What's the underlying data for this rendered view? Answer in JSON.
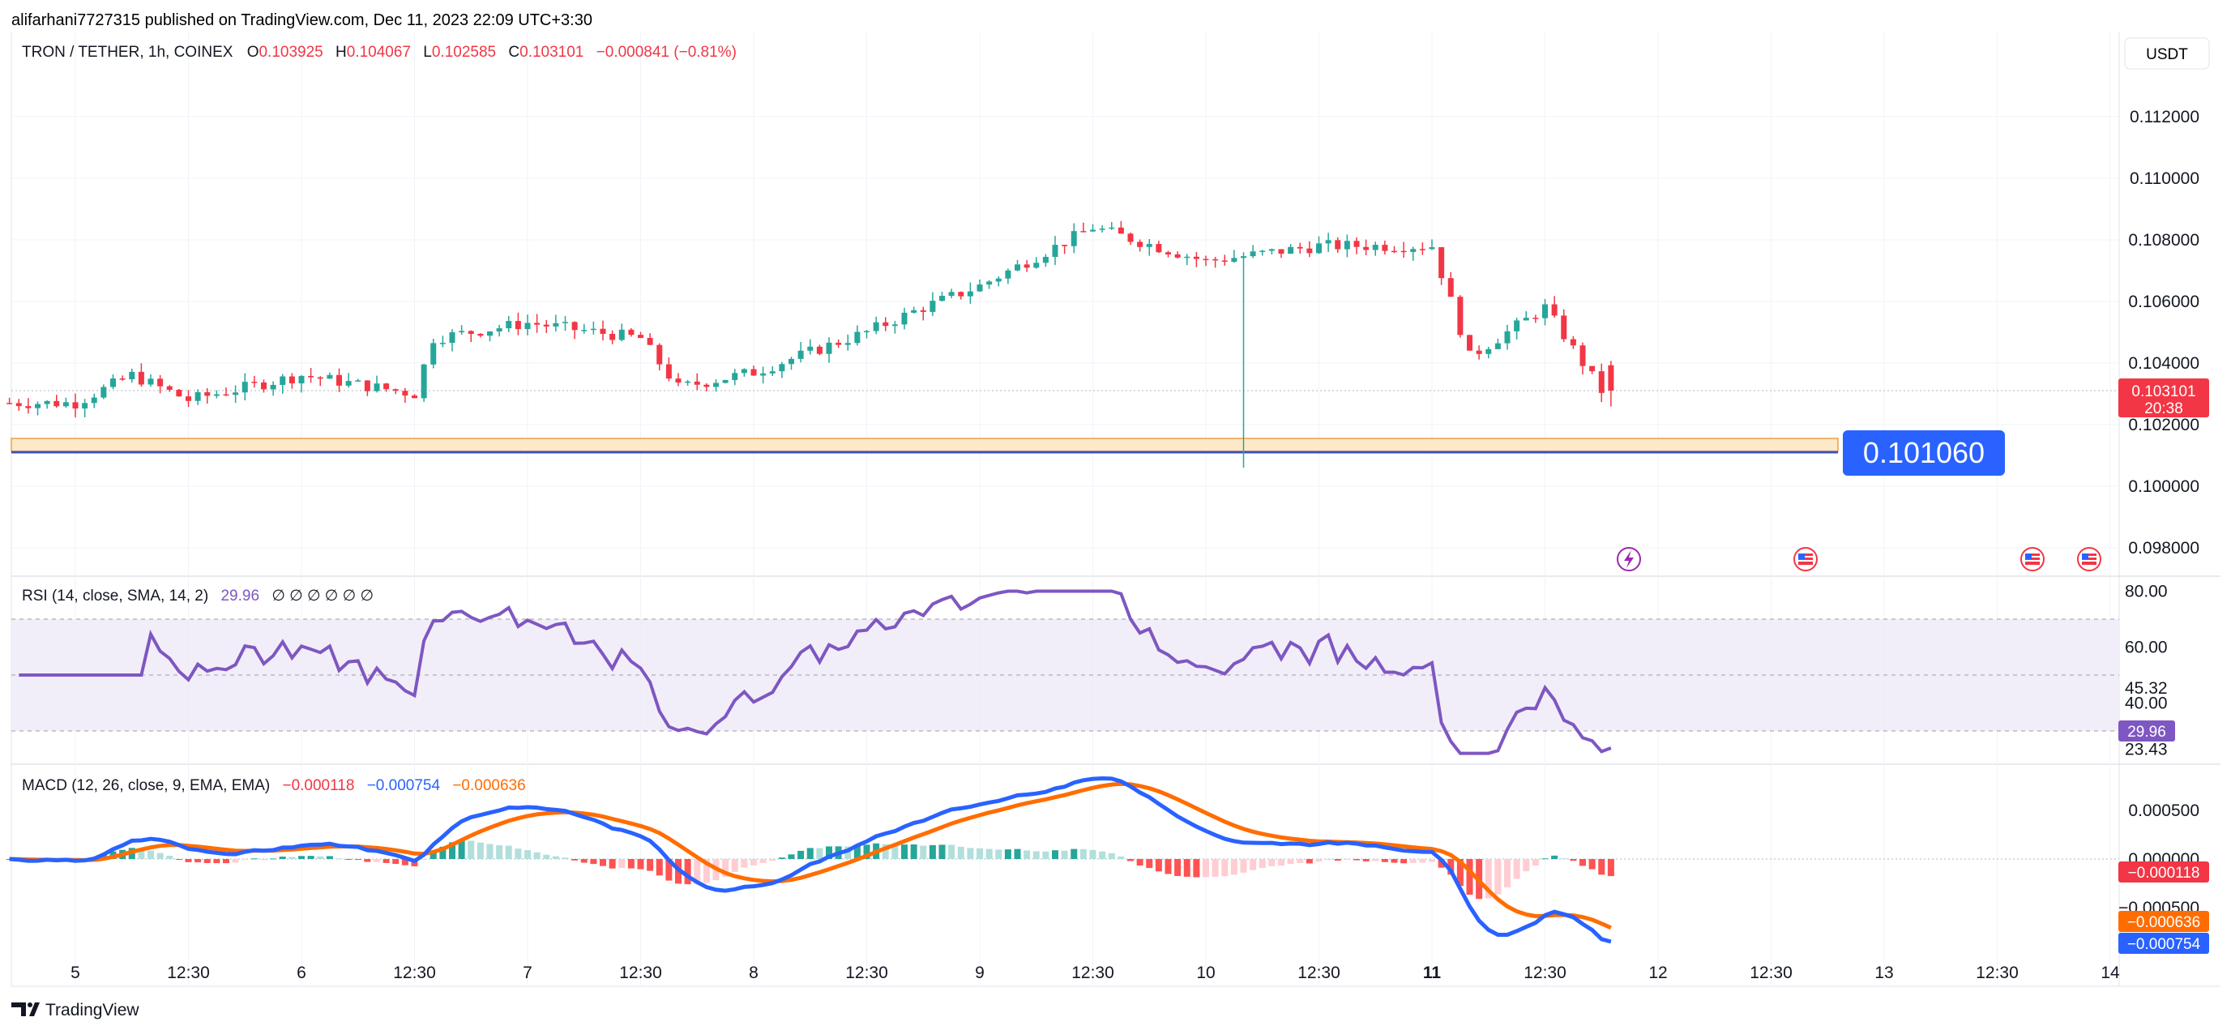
{
  "header": {
    "published_by": "alifarhani7727315 published on TradingView.com, Dec 11, 2023 22:09 UTC+3:30",
    "currency_button": "USDT"
  },
  "main_legend": {
    "symbol": "TRON / TETHER, 1h, COINEX",
    "o_label": "O",
    "o_value": "0.103925",
    "h_label": "H",
    "h_value": "0.104067",
    "l_label": "L",
    "l_value": "0.102585",
    "c_label": "C",
    "c_value": "0.103101",
    "change": "−0.000841 (−0.81%)"
  },
  "price_axis": {
    "ticks": [
      "0.112000",
      "0.110000",
      "0.108000",
      "0.106000",
      "0.104000",
      "0.102000",
      "0.100000",
      "0.098000"
    ],
    "last_price": "0.103101",
    "countdown": "20:38",
    "zone_label": "0.101060"
  },
  "rsi": {
    "legend": "RSI (14, close, SMA, 14, 2)",
    "value": "29.96",
    "placeholders": "∅ ∅ ∅ ∅ ∅ ∅",
    "ticks": [
      "80.00",
      "60.00",
      "45.32",
      "40.00",
      "23.43"
    ],
    "badge": "29.96"
  },
  "macd": {
    "legend": "MACD (12, 26, close, 9, EMA, EMA)",
    "hist_value": "−0.000118",
    "macd_value": "−0.000754",
    "signal_value": "−0.000636",
    "ticks": [
      "0.000500",
      "0.000000",
      "−0.000500"
    ],
    "badges": [
      "−0.000118",
      "−0.000636",
      "−0.000754"
    ]
  },
  "time_axis": {
    "labels": [
      "5",
      "12:30",
      "6",
      "12:30",
      "7",
      "12:30",
      "8",
      "12:30",
      "9",
      "12:30",
      "10",
      "12:30",
      "11",
      "12:30",
      "12",
      "12:30",
      "13",
      "12:30",
      "14"
    ]
  },
  "footer": {
    "brand": "TradingView"
  },
  "colors": {
    "up": "#26a69a",
    "down": "#f23645",
    "rsi": "#7e57c2",
    "macd": "#2962ff",
    "signal": "#ff6d00",
    "label_bg": "#2962ff",
    "zone": "#fde8c8",
    "zone_line": "#3f51b5"
  },
  "chart_data": [
    {
      "type": "candlestick",
      "title": "TRON / TETHER, 1h, COINEX",
      "ylim": [
        0.0972,
        0.1135
      ],
      "x_range": "Dec 5 – Dec 14",
      "open": 0.103925,
      "high": 0.104067,
      "low": 0.102585,
      "close": 0.103101,
      "key_points_close": [
        {
          "t": "Dec 5 00:00",
          "v": 0.1027
        },
        {
          "t": "Dec 5 06:00",
          "v": 0.1036
        },
        {
          "t": "Dec 5 12:00",
          "v": 0.1028
        },
        {
          "t": "Dec 6 00:00",
          "v": 0.1036
        },
        {
          "t": "Dec 6 12:00",
          "v": 0.103
        },
        {
          "t": "Dec 6 14:00",
          "v": 0.1048
        },
        {
          "t": "Dec 7 00:00",
          "v": 0.1053
        },
        {
          "t": "Dec 7 12:00",
          "v": 0.1048
        },
        {
          "t": "Dec 7 16:00",
          "v": 0.1032
        },
        {
          "t": "Dec 8 00:00",
          "v": 0.1037
        },
        {
          "t": "Dec 8 12:00",
          "v": 0.105
        },
        {
          "t": "Dec 8 18:00",
          "v": 0.1058
        },
        {
          "t": "Dec 9 00:00",
          "v": 0.1065
        },
        {
          "t": "Dec 9 12:00",
          "v": 0.1084
        },
        {
          "t": "Dec 10 00:00",
          "v": 0.1073
        },
        {
          "t": "Dec 10 12:00",
          "v": 0.1078
        },
        {
          "t": "Dec 11 00:00",
          "v": 0.1078
        },
        {
          "t": "Dec 11 04:00",
          "v": 0.1042
        },
        {
          "t": "Dec 11 12:00",
          "v": 0.1058
        },
        {
          "t": "Dec 11 18:00",
          "v": 0.1031
        }
      ],
      "zone": {
        "low": 0.10106,
        "high": 0.1014
      }
    },
    {
      "type": "line",
      "title": "RSI (14, close, SMA, 14, 2)",
      "ylim": [
        20,
        82
      ],
      "bands": [
        70,
        50,
        30
      ],
      "series": [
        {
          "name": "RSI",
          "last": 29.96
        }
      ],
      "reference_values": [
        45.32,
        23.43
      ]
    },
    {
      "type": "line+bar",
      "title": "MACD (12, 26, close, 9, EMA, EMA)",
      "ylim": [
        -0.00085,
        0.00085
      ],
      "series": [
        {
          "name": "MACD",
          "last": -0.000754
        },
        {
          "name": "Signal",
          "last": -0.000636
        },
        {
          "name": "Histogram",
          "last": -0.000118
        }
      ]
    }
  ]
}
